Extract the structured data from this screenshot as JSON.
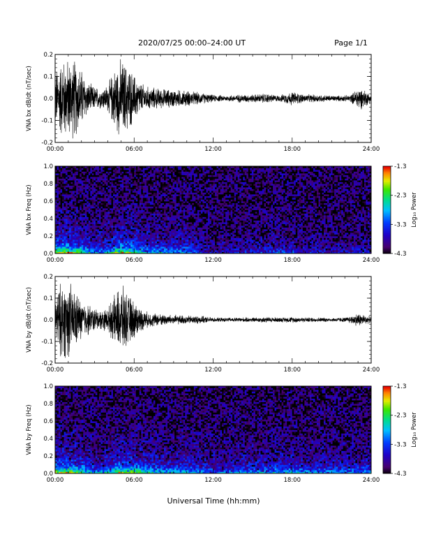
{
  "header": {
    "title": "2020/07/25  00:00–24:00 UT",
    "page": "Page 1/1"
  },
  "xaxis": {
    "label": "Universal Time (hh:mm)",
    "ticks": [
      "00:00",
      "06:00",
      "12:00",
      "18:00",
      "24:00"
    ],
    "range": [
      0,
      24
    ]
  },
  "chart_data": [
    {
      "type": "line",
      "title": "",
      "ylabel": "VNA bx dB/dt (nT/sec)",
      "ylim": [
        -0.2,
        0.2
      ],
      "yticks": [
        "-0.2",
        "-0.1",
        "0.0",
        "0.1",
        "0.2"
      ],
      "envelope": {
        "x_hours": [
          0,
          0.5,
          1,
          1.5,
          2,
          2.5,
          3,
          3.5,
          4,
          4.5,
          5,
          5.5,
          6,
          6.5,
          7,
          8,
          9,
          10,
          11,
          12,
          13,
          14,
          15,
          16,
          17,
          18,
          19,
          20,
          21,
          22,
          22.5,
          23,
          23.5,
          24
        ],
        "amplitude": [
          0.14,
          0.2,
          0.2,
          0.2,
          0.15,
          0.08,
          0.06,
          0.05,
          0.07,
          0.15,
          0.2,
          0.17,
          0.12,
          0.08,
          0.06,
          0.05,
          0.045,
          0.04,
          0.03,
          0.018,
          0.015,
          0.02,
          0.02,
          0.025,
          0.015,
          0.035,
          0.02,
          0.02,
          0.015,
          0.015,
          0.02,
          0.06,
          0.045,
          0.02
        ]
      }
    },
    {
      "type": "heatmap",
      "title": "",
      "ylabel": "VNA bx Freq (Hz)",
      "ylim": [
        0,
        1.0
      ],
      "yticks": [
        "0.0",
        "0.2",
        "0.4",
        "0.6",
        "0.8",
        "1.0"
      ],
      "colorbar": {
        "label": "Log₁₀ Power",
        "range": [
          -4.3,
          -1.3
        ],
        "ticks": [
          "-1.3",
          "-2.3",
          "-3.3",
          "-4.3"
        ]
      },
      "activity": {
        "x_hours": [
          0,
          1,
          2,
          3,
          4,
          5,
          6,
          7,
          8,
          9,
          10,
          11,
          12,
          13,
          14,
          15,
          16,
          17,
          18,
          19,
          20,
          21,
          22,
          23,
          24
        ],
        "level": [
          0.95,
          1.0,
          0.85,
          0.45,
          0.55,
          1.0,
          0.85,
          0.6,
          0.55,
          0.5,
          0.55,
          0.3,
          0.18,
          0.15,
          0.2,
          0.25,
          0.3,
          0.35,
          0.3,
          0.2,
          0.2,
          0.2,
          0.2,
          0.25,
          0.2
        ]
      }
    },
    {
      "type": "line",
      "title": "",
      "ylabel": "VNA by dB/dt (nT/sec)",
      "ylim": [
        -0.2,
        0.2
      ],
      "yticks": [
        "-0.2",
        "-0.1",
        "0.0",
        "0.1",
        "0.2"
      ],
      "envelope": {
        "x_hours": [
          0,
          0.5,
          1,
          1.5,
          2,
          2.5,
          3,
          3.5,
          4,
          4.5,
          5,
          5.5,
          6,
          6.5,
          7,
          8,
          9,
          10,
          11,
          12,
          13,
          14,
          15,
          16,
          17,
          18,
          19,
          20,
          21,
          22,
          22.5,
          23,
          23.5,
          24
        ],
        "amplitude": [
          0.12,
          0.2,
          0.2,
          0.15,
          0.1,
          0.08,
          0.06,
          0.05,
          0.06,
          0.12,
          0.18,
          0.13,
          0.1,
          0.06,
          0.04,
          0.03,
          0.025,
          0.022,
          0.02,
          0.012,
          0.01,
          0.012,
          0.012,
          0.015,
          0.012,
          0.015,
          0.012,
          0.012,
          0.01,
          0.012,
          0.02,
          0.035,
          0.025,
          0.015
        ]
      }
    },
    {
      "type": "heatmap",
      "title": "",
      "ylabel": "VNA by Freq (Hz)",
      "ylim": [
        0,
        1.0
      ],
      "yticks": [
        "0.0",
        "0.2",
        "0.4",
        "0.6",
        "0.8",
        "1.0"
      ],
      "colorbar": {
        "label": "Log₁₀ Power",
        "range": [
          -4.3,
          -1.3
        ],
        "ticks": [
          "-1.3",
          "-2.3",
          "-3.3",
          "-4.3"
        ]
      },
      "activity": {
        "x_hours": [
          0,
          1,
          2,
          3,
          4,
          5,
          6,
          7,
          8,
          9,
          10,
          11,
          12,
          13,
          14,
          15,
          16,
          17,
          18,
          19,
          20,
          21,
          22,
          23,
          24
        ],
        "level": [
          0.9,
          1.0,
          0.8,
          0.5,
          0.6,
          1.0,
          0.9,
          0.65,
          0.6,
          0.55,
          0.6,
          0.45,
          0.4,
          0.4,
          0.45,
          0.5,
          0.5,
          0.55,
          0.55,
          0.45,
          0.45,
          0.45,
          0.45,
          0.5,
          0.45
        ]
      }
    }
  ],
  "colors": {
    "axis": "#000000",
    "trace": "#000000"
  }
}
